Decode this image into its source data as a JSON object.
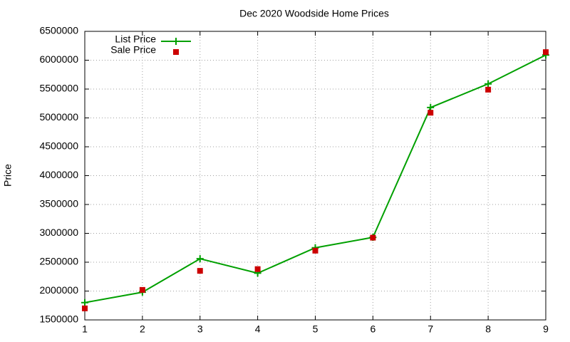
{
  "chart_data": {
    "type": "line",
    "title": "Dec 2020 Woodside Home Prices",
    "y_label": "Price",
    "x": [
      1,
      2,
      3,
      4,
      5,
      6,
      7,
      8,
      9
    ],
    "series": [
      {
        "name": "List Price",
        "color": "#00a000",
        "line": true,
        "marker": "plus",
        "values": [
          1800000,
          1980000,
          2560000,
          2310000,
          2750000,
          2930000,
          5180000,
          5590000,
          6090000
        ]
      },
      {
        "name": "Sale Price",
        "color": "#cc0000",
        "line": false,
        "marker": "square",
        "values": [
          1700000,
          2020000,
          2350000,
          2380000,
          2700000,
          2925000,
          5090000,
          5490000,
          6140000
        ]
      }
    ],
    "xlim": [
      1,
      9
    ],
    "xticks": [
      1,
      2,
      3,
      4,
      5,
      6,
      7,
      8,
      9
    ],
    "ylim": [
      1500000,
      6500000
    ],
    "yticks": [
      1500000,
      2000000,
      2500000,
      3000000,
      3500000,
      4000000,
      4500000,
      5000000,
      5500000,
      6000000,
      6500000
    ],
    "grid": true,
    "legend": "top-left"
  }
}
